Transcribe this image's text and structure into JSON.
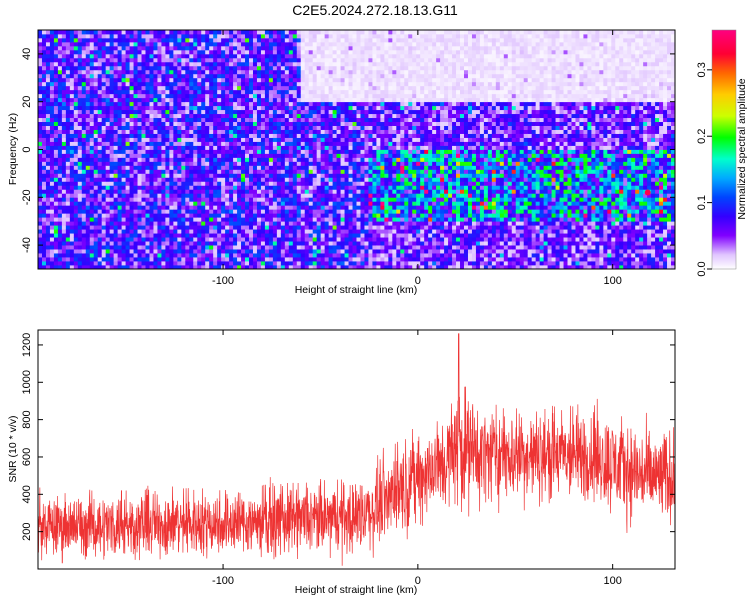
{
  "title": "C2E5.2024.272.18.13.G11",
  "chart_data": [
    {
      "type": "heatmap",
      "xlabel": "Height of straight line (km)",
      "ylabel": "Frequency (Hz)",
      "xlim": [
        -195,
        132
      ],
      "ylim": [
        -50,
        50
      ],
      "xticks": [
        -100,
        0,
        100
      ],
      "yticks": [
        -40,
        -20,
        0,
        20,
        40
      ],
      "colorbar": {
        "label": "Normalized spectral amplitude",
        "range": [
          0,
          0.36
        ],
        "ticks": [
          0.0,
          0.1,
          0.2,
          0.3
        ],
        "tick_labels": [
          "0.0",
          "0.1",
          "0.2",
          "0.3"
        ],
        "colormap": [
          "#ffffff",
          "#e0c4ff",
          "#8000ff",
          "#3300ff",
          "#0044ff",
          "#00aaff",
          "#00ffcc",
          "#00ff00",
          "#ccff00",
          "#ffcc00",
          "#ff6600",
          "#ff0033",
          "#ff0080"
        ]
      },
      "description_regions": [
        {
          "x_range": [
            -195,
            -25
          ],
          "freq_range": [
            -50,
            50
          ],
          "level": 0.07
        },
        {
          "x_range": [
            -60,
            132
          ],
          "freq_range": [
            20,
            50
          ],
          "level": 0.015
        },
        {
          "x_range": [
            -25,
            132
          ],
          "freq_range": [
            -30,
            0
          ],
          "level": 0.12
        }
      ]
    },
    {
      "type": "line",
      "xlabel": "Height of straight line (km)",
      "ylabel": "SNR (10 * v/v)",
      "xlim": [
        -195,
        132
      ],
      "ylim": [
        0,
        1280
      ],
      "xticks": [
        -100,
        0,
        100
      ],
      "yticks": [
        200,
        400,
        600,
        800,
        1000,
        1200
      ],
      "series": [
        {
          "color": "#ee3333",
          "envelope": {
            "x": [
              -195,
              -150,
              -100,
              -60,
              -40,
              -25,
              -15,
              -5,
              5,
              15,
              22,
              30,
              50,
              70,
              90,
              100,
              110,
              120,
              132
            ],
            "lower": [
              50,
              50,
              60,
              60,
              60,
              80,
              150,
              200,
              250,
              300,
              300,
              330,
              350,
              350,
              330,
              280,
              250,
              230,
              230
            ],
            "upper": [
              400,
              420,
              440,
              460,
              480,
              520,
              640,
              730,
              780,
              860,
              1060,
              900,
              860,
              870,
              880,
              840,
              800,
              750,
              760
            ]
          },
          "peak": {
            "x": 21,
            "y": 1260
          }
        }
      ]
    }
  ]
}
